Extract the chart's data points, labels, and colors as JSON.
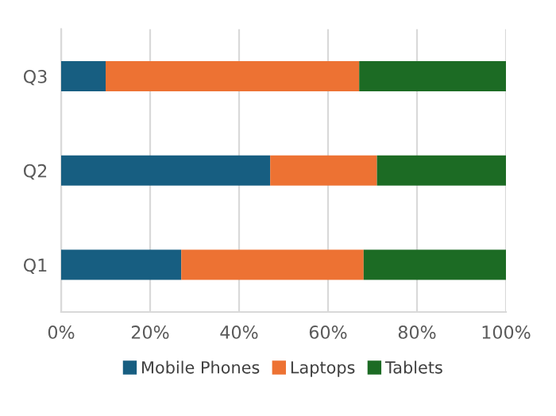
{
  "chart_data": {
    "type": "bar",
    "orientation": "horizontal",
    "stacked": true,
    "categories": [
      "Q3",
      "Q2",
      "Q1"
    ],
    "series": [
      {
        "name": "Mobile Phones",
        "color": "#175e81",
        "values": [
          10,
          47,
          27
        ]
      },
      {
        "name": "Laptops",
        "color": "#ed7233",
        "values": [
          57,
          24,
          41
        ]
      },
      {
        "name": "Tablets",
        "color": "#1c6b24",
        "values": [
          33,
          29,
          32
        ]
      }
    ],
    "xlim": [
      0,
      100
    ],
    "xticks": [
      {
        "value": 0,
        "label": "0%"
      },
      {
        "value": 20,
        "label": "20%"
      },
      {
        "value": 40,
        "label": "40%"
      },
      {
        "value": 60,
        "label": "60%"
      },
      {
        "value": 80,
        "label": "80%"
      },
      {
        "value": 100,
        "label": "100%"
      }
    ],
    "grid": "x",
    "legend": "bottom"
  }
}
